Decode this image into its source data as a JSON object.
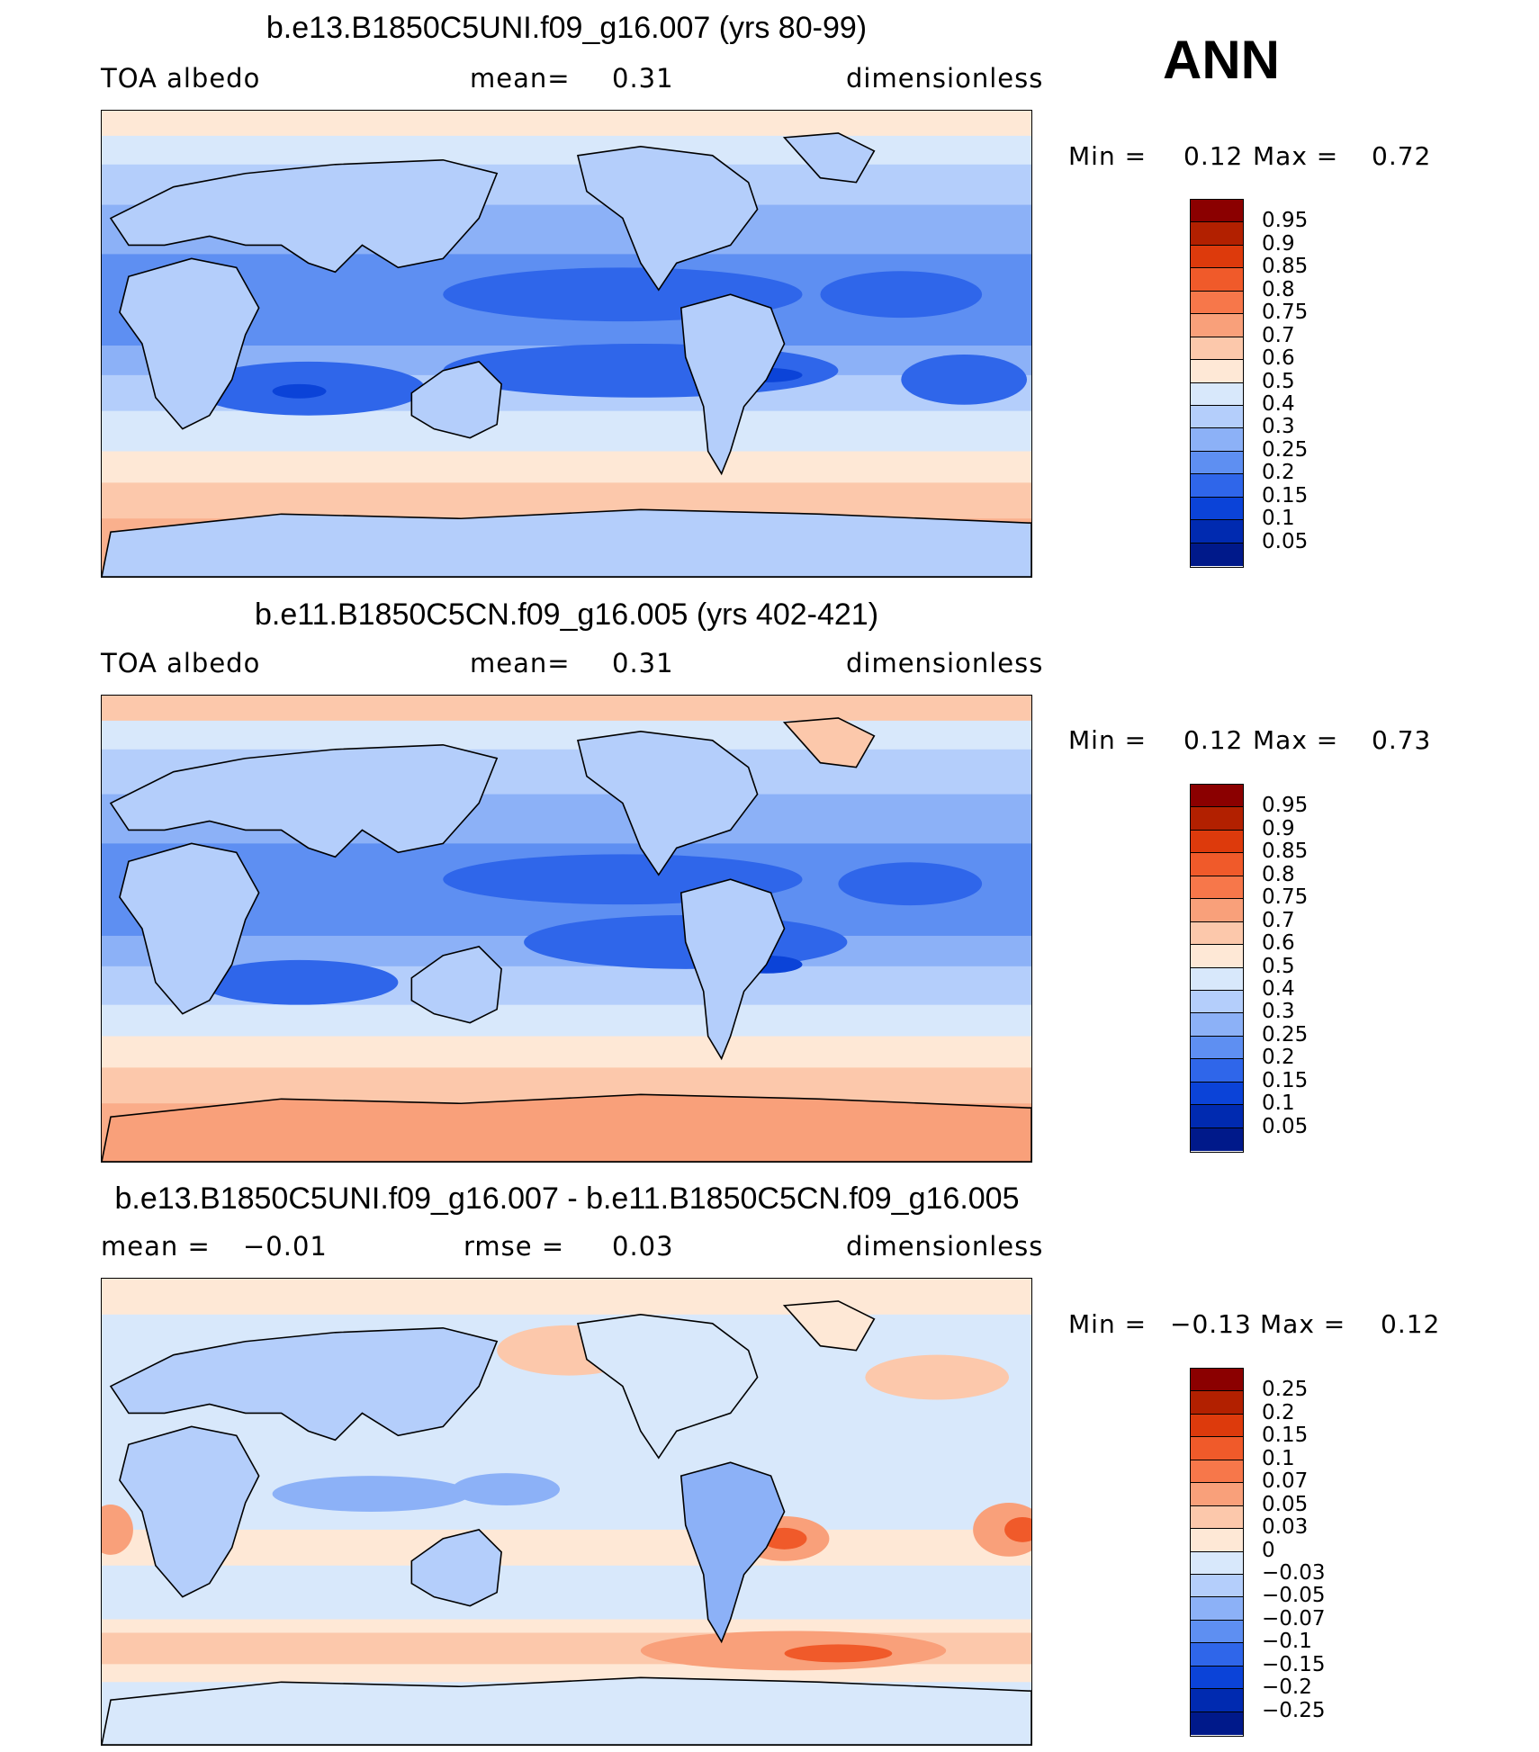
{
  "season": "ANN",
  "chart_data": [
    {
      "type": "heatmap",
      "title": "b.e13.B1850C5UNI.f09_g16.007 (yrs 80-99)",
      "variable": "TOA albedo",
      "mean_label": "mean=",
      "mean": "0.31",
      "units": "dimensionless",
      "min_label": "Min =",
      "min": "0.12",
      "max_label": "Max =",
      "max": "0.72",
      "colorbar": [
        "0.95",
        "0.9",
        "0.85",
        "0.8",
        "0.75",
        "0.7",
        "0.6",
        "0.5",
        "0.4",
        "0.3",
        "0.25",
        "0.2",
        "0.15",
        "0.1",
        "0.05"
      ],
      "colors": [
        "#8b0000",
        "#b22000",
        "#dd3a0c",
        "#f05a2a",
        "#f7774a",
        "#f9a07a",
        "#fcc8ab",
        "#fee8d6",
        "#d8e8fb",
        "#b4cefb",
        "#8cb1f7",
        "#5e8ff2",
        "#2f66ea",
        "#0b43d8",
        "#002ab0",
        "#00198a"
      ]
    },
    {
      "type": "heatmap",
      "title": "b.e11.B1850C5CN.f09_g16.005 (yrs 402-421)",
      "variable": "TOA albedo",
      "mean_label": "mean=",
      "mean": "0.31",
      "units": "dimensionless",
      "min_label": "Min =",
      "min": "0.12",
      "max_label": "Max =",
      "max": "0.73",
      "colorbar": [
        "0.95",
        "0.9",
        "0.85",
        "0.8",
        "0.75",
        "0.7",
        "0.6",
        "0.5",
        "0.4",
        "0.3",
        "0.25",
        "0.2",
        "0.15",
        "0.1",
        "0.05"
      ],
      "colors": [
        "#8b0000",
        "#b22000",
        "#dd3a0c",
        "#f05a2a",
        "#f7774a",
        "#f9a07a",
        "#fcc8ab",
        "#fee8d6",
        "#d8e8fb",
        "#b4cefb",
        "#8cb1f7",
        "#5e8ff2",
        "#2f66ea",
        "#0b43d8",
        "#002ab0",
        "#00198a"
      ]
    },
    {
      "type": "heatmap",
      "title": "b.e13.B1850C5UNI.f09_g16.007 - b.e11.B1850C5CN.f09_g16.005",
      "mean_label": "mean =",
      "mean": "−0.01",
      "rmse_label": "rmse =",
      "rmse": "0.03",
      "units": "dimensionless",
      "min_label": "Min =",
      "min": "−0.13",
      "max_label": "Max =",
      "max": "0.12",
      "colorbar": [
        "0.25",
        "0.2",
        "0.15",
        "0.1",
        "0.07",
        "0.05",
        "0.03",
        "0",
        "−0.03",
        "−0.05",
        "−0.07",
        "−0.1",
        "−0.15",
        "−0.2",
        "−0.25"
      ],
      "colors": [
        "#8b0000",
        "#b22000",
        "#dd3a0c",
        "#f05a2a",
        "#f7774a",
        "#f9a07a",
        "#fcc8ab",
        "#fee8d6",
        "#d8e8fb",
        "#b4cefb",
        "#8cb1f7",
        "#5e8ff2",
        "#2f66ea",
        "#0b43d8",
        "#002ab0",
        "#00198a"
      ]
    }
  ]
}
